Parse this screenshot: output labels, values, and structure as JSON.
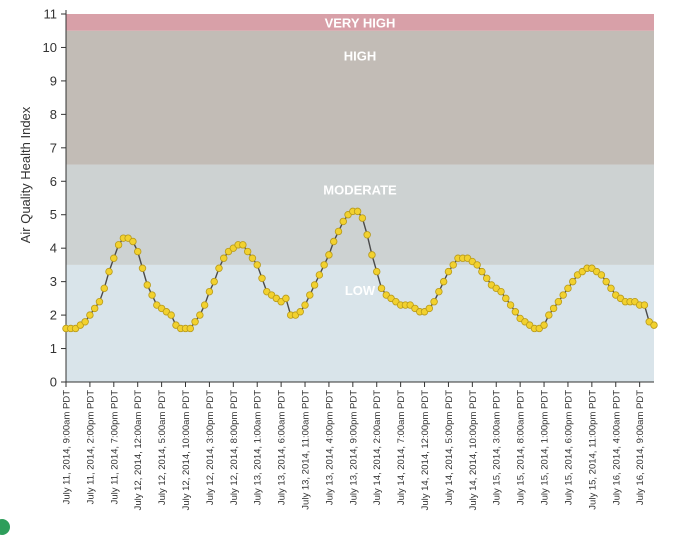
{
  "chart_data": {
    "type": "line",
    "title": "",
    "ylabel": "Air Quality Health Index",
    "xlabel": "",
    "ylim": [
      0,
      11
    ],
    "yticks": [
      0,
      1,
      2,
      3,
      4,
      5,
      6,
      7,
      8,
      9,
      10,
      11
    ],
    "grid": false,
    "legend": "none",
    "line_color": "#4a4a4a",
    "marker_color": "#f2d12e",
    "marker_edge_color": "#b89a1a",
    "bands": [
      {
        "label": "LOW",
        "from": 0,
        "to": 3.5,
        "color": "#d9e4ea"
      },
      {
        "label": "MODERATE",
        "from": 3.5,
        "to": 6.5,
        "color": "#cdd2d2"
      },
      {
        "label": "HIGH",
        "from": 6.5,
        "to": 10.5,
        "color": "#c2bcb6"
      },
      {
        "label": "VERY HIGH",
        "from": 10.5,
        "to": 11,
        "color": "#d8a0a8"
      }
    ],
    "x_tick_labels": [
      "July 11, 2014, 9:00am PDT",
      "July 11, 2014, 2:00pm PDT",
      "July 11, 2014, 7:00pm PDT",
      "July 12, 2014, 12:00am PDT",
      "July 12, 2014, 5:00am PDT",
      "July 12, 2014, 10:00am PDT",
      "July 12, 2014, 3:00pm PDT",
      "July 12, 2014, 8:00pm PDT",
      "July 13, 2014, 1:00am PDT",
      "July 13, 2014, 6:00am PDT",
      "July 13, 2014, 11:00am PDT",
      "July 13, 2014, 4:00pm PDT",
      "July 13, 2014, 9:00pm PDT",
      "July 14, 2014, 2:00am PDT",
      "July 14, 2014, 7:00am PDT",
      "July 14, 2014, 12:00pm PDT",
      "July 14, 2014, 5:00pm PDT",
      "July 14, 2014, 10:00pm PDT",
      "July 15, 2014, 3:00am PDT",
      "July 15, 2014, 8:00am PDT",
      "July 15, 2014, 1:00pm PDT",
      "July 15, 2014, 6:00pm PDT",
      "July 15, 2014, 11:00pm PDT",
      "July 16, 2014, 4:00am PDT",
      "July 16, 2014, 9:00am PDT"
    ],
    "series": [
      {
        "x_start": "July 11, 2014, 9:00am PDT",
        "interval_hours": 1,
        "values": [
          1.6,
          1.6,
          1.6,
          1.7,
          1.8,
          2.0,
          2.2,
          2.4,
          2.8,
          3.3,
          3.7,
          4.1,
          4.3,
          4.3,
          4.2,
          3.9,
          3.4,
          2.9,
          2.6,
          2.3,
          2.2,
          2.1,
          2.0,
          1.7,
          1.6,
          1.6,
          1.6,
          1.8,
          2.0,
          2.3,
          2.7,
          3.0,
          3.4,
          3.7,
          3.9,
          4.0,
          4.1,
          4.1,
          3.9,
          3.7,
          3.5,
          3.1,
          2.7,
          2.6,
          2.5,
          2.4,
          2.5,
          2.0,
          2.0,
          2.1,
          2.3,
          2.6,
          2.9,
          3.2,
          3.5,
          3.8,
          4.2,
          4.5,
          4.8,
          5.0,
          5.1,
          5.1,
          4.9,
          4.4,
          3.8,
          3.3,
          2.8,
          2.6,
          2.5,
          2.4,
          2.3,
          2.3,
          2.3,
          2.2,
          2.1,
          2.1,
          2.2,
          2.4,
          2.7,
          3.0,
          3.3,
          3.5,
          3.7,
          3.7,
          3.7,
          3.6,
          3.5,
          3.3,
          3.1,
          2.9,
          2.8,
          2.7,
          2.5,
          2.3,
          2.1,
          1.9,
          1.8,
          1.7,
          1.6,
          1.6,
          1.7,
          2.0,
          2.2,
          2.4,
          2.6,
          2.8,
          3.0,
          3.2,
          3.3,
          3.4,
          3.4,
          3.3,
          3.2,
          3.0,
          2.8,
          2.6,
          2.5,
          2.4,
          2.4,
          2.4,
          2.3,
          2.3,
          1.8,
          1.7
        ]
      }
    ]
  }
}
